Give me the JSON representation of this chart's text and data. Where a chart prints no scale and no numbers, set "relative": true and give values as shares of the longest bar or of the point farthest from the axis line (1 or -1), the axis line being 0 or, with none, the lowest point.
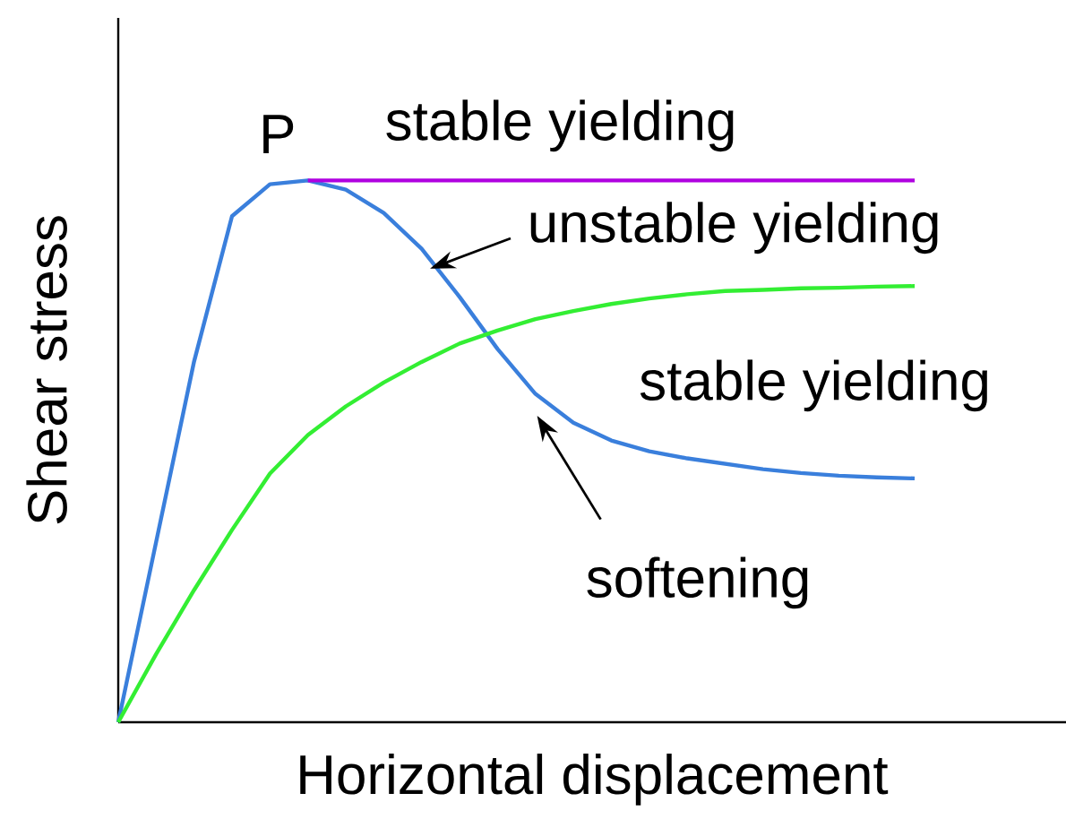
{
  "chart_data": {
    "type": "line",
    "relative": true,
    "xlabel": "Horizontal displacement",
    "ylabel": "Shear stress",
    "marker": "none",
    "line_style": "solid",
    "categories": [
      null,
      null,
      null,
      null,
      null,
      null,
      null,
      null,
      null,
      null,
      null,
      null,
      null,
      null,
      null,
      null,
      null,
      null,
      null,
      null,
      null,
      null
    ],
    "series": [
      {
        "color": "#3a7fdc",
        "values": [
          0,
          0.333,
          0.666,
          0.934,
          0.993,
          1,
          0.983,
          0.94,
          0.874,
          0.785,
          0.689,
          0.606,
          0.553,
          0.52,
          0.5,
          0.487,
          0.477,
          0.467,
          0.46,
          0.455,
          0.452,
          0.45
        ]
      },
      {
        "color": "#33ee33",
        "values": [
          0,
          0.126,
          0.244,
          0.355,
          0.459,
          0.53,
          0.583,
          0.627,
          0.665,
          0.699,
          0.723,
          0.744,
          0.759,
          0.772,
          0.782,
          0.79,
          0.796,
          0.798,
          0.801,
          0.802,
          0.804,
          0.805
        ]
      },
      {
        "color": "#b000e0",
        "values": [
          null,
          null,
          null,
          null,
          null,
          1,
          1,
          1,
          1,
          1,
          1,
          1,
          1,
          1,
          1,
          1,
          1,
          1,
          1,
          1,
          1,
          1
        ]
      }
    ],
    "annotations": [
      "P",
      "stable yielding",
      "unstable yielding",
      "stable yielding",
      "softening"
    ]
  }
}
